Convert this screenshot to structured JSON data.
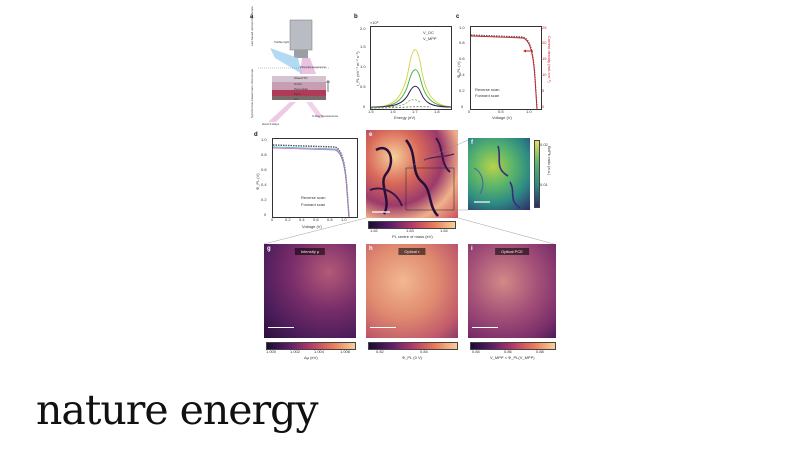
{
  "panels": {
    "a": {
      "label": "a",
      "left_labels": [
        "Lab-based optical microscope",
        "Synchrotron-based nano-microscope"
      ],
      "items": [
        "Visible light",
        "Photoluminescence",
        "Glass/ITO",
        "SnO2",
        "Perovskite",
        "Spiro",
        "Au",
        "Hard X-Rays",
        "X-Ray fluorescence"
      ]
    },
    "b": {
      "label": "b",
      "top_note": "×10⁸",
      "xlabel": "Energy (eV)",
      "ylabel": "I_PL (eV⁻¹ m⁻² s⁻¹)",
      "legend": [
        "V_OC",
        "V_MPP"
      ],
      "xticks": [
        "1.5",
        "1.6",
        "1.7",
        "1.8"
      ],
      "yticks": [
        "0",
        "0.5",
        "1.0",
        "1.5",
        "2.0"
      ]
    },
    "c": {
      "label": "c",
      "xlabel": "Voltage (V)",
      "ylabel": "Φ_PL (V)",
      "right_label": "Current density (mA cm⁻²)",
      "legend": [
        "Reverse scan",
        "Forward scan"
      ],
      "xticks": [
        "0",
        "0.5",
        "1.0"
      ],
      "yticks": [
        "0",
        "0.2",
        "0.4",
        "0.6",
        "0.8",
        "1.0"
      ],
      "right_ticks": [
        "0",
        "5",
        "10",
        "15",
        "20",
        "25"
      ]
    },
    "d": {
      "label": "d",
      "xlabel": "Voltage (V)",
      "ylabel": "Φ_PL (V)",
      "legend": [
        "Reverse scan",
        "Forward scan"
      ],
      "xticks": [
        "0",
        "0.2",
        "0.4",
        "0.6",
        "0.8",
        "1.0"
      ],
      "yticks": [
        "0",
        "0.2",
        "0.4",
        "0.6",
        "0.8",
        "1.0"
      ]
    },
    "e": {
      "label": "e",
      "colorbar_label": "PL centre of mass (eV)",
      "colorbar_ticks": [
        "1.62",
        "1.63",
        "1.64"
      ]
    },
    "f": {
      "label": "f",
      "colorbar_label": "Br/Pb ratio (a.u.)",
      "colorbar_ticks": [
        "0.02",
        "0.01"
      ]
    },
    "g": {
      "label": "g",
      "title": "Intensity μ",
      "colorbar_label": "Δμ (eV)",
      "colorbar_ticks": [
        "1.000",
        "1.002",
        "1.004",
        "1.006"
      ]
    },
    "h": {
      "label": "h",
      "title": "Optical τ",
      "colorbar_label": "Φ_PL (0 V)",
      "colorbar_ticks": [
        "0.82",
        "0.84"
      ]
    },
    "i": {
      "label": "i",
      "title": "Optical PCE",
      "colorbar_label": "V_MPP × Φ_PL(V_MPP)",
      "colorbar_ticks": [
        "0.84",
        "0.86",
        "0.88"
      ]
    }
  },
  "journal": "nature energy",
  "colors": {
    "inferno_dark": "#1b0c32",
    "inferno_mid": "#9c3a6a",
    "inferno_light": "#f6d09a",
    "viridis_dark": "#2e2a6b",
    "viridis_light": "#e6e15c",
    "red_curve": "#c8202a",
    "green_curve": "#3fae3a",
    "yellow_curve": "#d4d23a",
    "purple_curve": "#3a1a5a"
  }
}
